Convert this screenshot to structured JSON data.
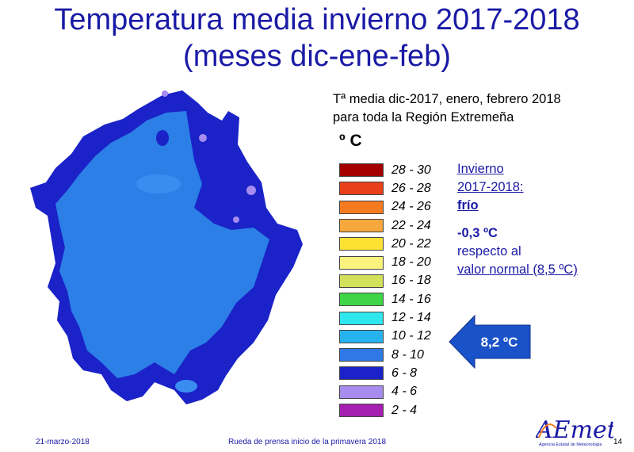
{
  "title": {
    "line1": "Temperatura media invierno 2017-2018",
    "line2": "(meses dic-ene-feb)"
  },
  "caption": {
    "line1": "Tª media dic-2017, enero, febrero 2018",
    "line2": "para toda la Región Extremeña"
  },
  "legend": {
    "unit": "º C",
    "items": [
      {
        "range": "28 - 30",
        "color": "#a50000"
      },
      {
        "range": "26 - 28",
        "color": "#e8401a"
      },
      {
        "range": "24 - 26",
        "color": "#f47b20"
      },
      {
        "range": "22 - 24",
        "color": "#f6a83c"
      },
      {
        "range": "20 - 22",
        "color": "#fde234"
      },
      {
        "range": "18 - 20",
        "color": "#fbf37e"
      },
      {
        "range": "16 - 18",
        "color": "#d3e05a"
      },
      {
        "range": "14 - 16",
        "color": "#3fd548"
      },
      {
        "range": "12 - 14",
        "color": "#2ee6ee"
      },
      {
        "range": "10 - 12",
        "color": "#27b4ee"
      },
      {
        "range": "8 - 10",
        "color": "#2f78e6"
      },
      {
        "range": "6 - 8",
        "color": "#1a22c8"
      },
      {
        "range": "4 - 6",
        "color": "#a78bef"
      },
      {
        "range": "2 - 4",
        "color": "#a51fb0"
      }
    ]
  },
  "note": {
    "line1": "Invierno",
    "line2": "2017-2018:",
    "line3": "frío",
    "anomaly": "-0,3 ºC",
    "line5": "respecto al",
    "line6": "valor normal (8,5 ºC)"
  },
  "arrow": {
    "value": "8,2 ºC",
    "color": "#1a52c9"
  },
  "footer": {
    "date": "21-marzo-2018",
    "event": "Rueda de prensa inicio de la primavera 2018",
    "page": "14"
  },
  "logo": {
    "text": "AEmet",
    "subtitle": "Agencia Estatal de Meteorología",
    "brand_color": "#1a1aa6"
  },
  "map": {
    "base_color": "#2c7fe6",
    "cold_color": "#1a22c8",
    "coldest_color": "#a78bef"
  }
}
